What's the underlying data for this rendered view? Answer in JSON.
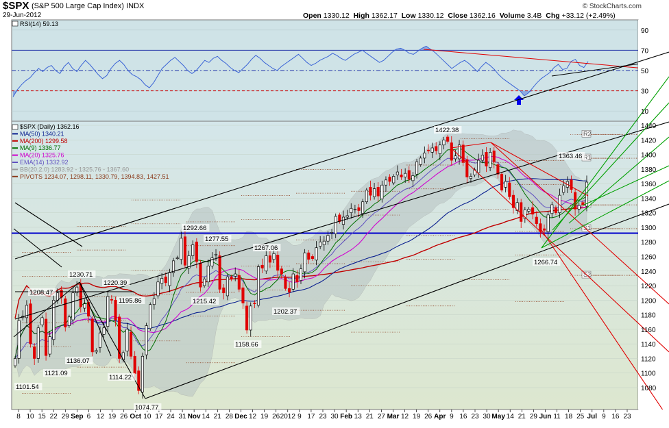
{
  "header": {
    "symbol": "$SPX",
    "name": "(S&P 500 Large Cap Index)",
    "exchange": "INDX",
    "date": "29-Jun-2012",
    "brand": "© StockCharts.com",
    "open_label": "Open",
    "open": "1330.12",
    "high_label": "High",
    "high": "1362.17",
    "low_label": "Low",
    "low": "1330.12",
    "close_label": "Close",
    "close": "1362.16",
    "volume_label": "Volume",
    "volume": "3.4B",
    "chg_label": "Chg",
    "chg": "+33.12 (+2.49%)"
  },
  "colors": {
    "panel_bg": "#cfe3e7",
    "price_bg_top": "#d4e6ea",
    "price_bg_bottom": "#dde7cf",
    "rsi_line": "#3a63d6",
    "up_candle": "#000000",
    "down_candle": "#e00000",
    "ma50": "#0a1f8f",
    "ma200": "#c00000",
    "ma9": "#007000",
    "ma20": "#d000d0",
    "ema14": "#6050c0",
    "bb": "#9a9a9a",
    "pivots": "#8b3a1a",
    "channel_black": "#000000",
    "channel_red": "#e00000",
    "channel_green": "#00a000",
    "support_blue": "#0000cc"
  },
  "chart_data": [
    {
      "type": "line",
      "title": "RSI(14) 59.13",
      "legend": "RSI(14) 59.13",
      "ylim": [
        0,
        100
      ],
      "y_ticks": [
        "90",
        "70",
        "50",
        "30",
        "10"
      ],
      "reference_lines": [
        70,
        50,
        30
      ],
      "series": [
        {
          "name": "RSI(14)",
          "values": [
            24,
            31,
            36,
            40,
            43,
            48,
            52,
            49,
            53,
            55,
            50,
            47,
            54,
            58,
            52,
            49,
            55,
            60,
            56,
            51,
            46,
            42,
            45,
            52,
            57,
            60,
            56,
            50,
            46,
            44,
            41,
            36,
            33,
            38,
            45,
            52,
            56,
            60,
            63,
            59,
            55,
            50,
            47,
            50,
            55,
            60,
            58,
            62,
            64,
            60,
            57,
            53,
            50,
            48,
            52,
            56,
            61,
            65,
            62,
            58,
            55,
            52,
            50,
            54,
            57,
            60,
            63,
            66,
            62,
            58,
            55,
            57,
            60,
            62,
            64,
            67,
            65,
            62,
            60,
            63,
            66,
            68,
            70,
            67,
            64,
            61,
            58,
            60,
            64,
            68,
            71,
            72,
            70,
            67,
            66,
            69,
            72,
            74,
            71,
            68,
            64,
            60,
            56,
            52,
            55,
            58,
            60,
            57,
            53,
            49,
            54,
            58,
            55,
            51,
            46,
            42,
            39,
            36,
            33,
            30,
            25,
            28,
            33,
            38,
            42,
            45,
            48,
            53,
            56,
            51,
            52,
            59,
            61,
            55,
            53,
            59
          ]
        }
      ]
    },
    {
      "type": "line",
      "title": "$SPX (Daily) 1362.16",
      "ylim": [
        1060,
        1450
      ],
      "y_ticks": [
        "1440",
        "1420",
        "1400",
        "1380",
        "1360",
        "1340",
        "1320",
        "1300",
        "1280",
        "1260",
        "1240",
        "1220",
        "1200",
        "1180",
        "1160",
        "1140",
        "1120",
        "1100",
        "1080"
      ],
      "x_tick_labels": [
        "8",
        "10",
        "15",
        "22",
        "29",
        "Sep",
        "6",
        "12",
        "19",
        "26",
        "Oct",
        "10",
        "17",
        "24",
        "31",
        "Nov",
        "14",
        "21",
        "28",
        "Dec",
        "12",
        "19",
        "26",
        "2012",
        "9",
        "17",
        "23",
        "30",
        "Feb",
        "13",
        "21",
        "27",
        "Mar",
        "12",
        "19",
        "26",
        "Apr",
        "9",
        "16",
        "23",
        "30",
        "May",
        "14",
        "21",
        "29",
        "Jun",
        "11",
        "18",
        "25",
        "Jul",
        "9",
        "16",
        "23"
      ],
      "legend": [
        "$SPX (Daily) 1362.16",
        "MA(50) 1340.21",
        "MA(200) 1299.58",
        "MA(9) 1336.77",
        "MA(20) 1325.76",
        "EMA(14) 1332.92",
        "BB(20,2.0) 1283.92 - 1325.76 - 1367.60",
        "PIVOTS 1234.07, 1298.11, 1330.79, 1394.83, 1427.51"
      ],
      "pivot_labels": [
        "R2",
        "R1",
        "P",
        "S1",
        "S2"
      ],
      "pivot_values": [
        1427.51,
        1394.83,
        1330.79,
        1298.11,
        1234.07
      ],
      "annotations": [
        {
          "text": "1208.47",
          "x": "Aug 15",
          "y": 1208.47
        },
        {
          "text": "1230.71",
          "x": "Aug 31",
          "y": 1230.71
        },
        {
          "text": "1220.39",
          "x": "Sep 16",
          "y": 1220.39
        },
        {
          "text": "1195.86",
          "x": "Sep 20",
          "y": 1195.86
        },
        {
          "text": "1121.09",
          "x": "Aug 22",
          "y": 1121.09
        },
        {
          "text": "1101.54",
          "x": "Aug 8",
          "y": 1101.54
        },
        {
          "text": "1136.07",
          "x": "Sep 12",
          "y": 1136.07
        },
        {
          "text": "1114.22",
          "x": "Sep 26",
          "y": 1114.22
        },
        {
          "text": "1074.77",
          "x": "Oct 4",
          "y": 1074.77
        },
        {
          "text": "1292.66",
          "x": "Oct 27",
          "y": 1292.66
        },
        {
          "text": "1215.42",
          "x": "Nov 1",
          "y": 1215.42
        },
        {
          "text": "1277.55",
          "x": "Nov 8",
          "y": 1277.55
        },
        {
          "text": "1158.66",
          "x": "Nov 25",
          "y": 1158.66
        },
        {
          "text": "1267.06",
          "x": "Dec 7",
          "y": 1267.06
        },
        {
          "text": "1202.37",
          "x": "Dec 19",
          "y": 1202.37
        },
        {
          "text": "1422.38",
          "x": "Apr 2",
          "y": 1422.38
        },
        {
          "text": "1363.46",
          "x": "Jun 19",
          "y": 1363.46
        },
        {
          "text": "1266.74",
          "x": "Jun 4",
          "y": 1266.74
        }
      ],
      "series": [
        {
          "name": "$SPX (Daily)",
          "close": [
            1120,
            1172,
            1178,
            1193,
            1140,
            1120,
            1162,
            1176,
            1124,
            1150,
            1200,
            1210,
            1204,
            1163,
            1177,
            1210,
            1218,
            1191,
            1195,
            1178,
            1129,
            1131,
            1155,
            1162,
            1205,
            1200,
            1173,
            1120,
            1128,
            1160,
            1123,
            1099,
            1076,
            1123,
            1165,
            1194,
            1202,
            1225,
            1230,
            1224,
            1238,
            1254,
            1258,
            1285,
            1248,
            1261,
            1276,
            1253,
            1218,
            1229,
            1247,
            1258,
            1263,
            1215,
            1210,
            1232,
            1229,
            1236,
            1215,
            1196,
            1159,
            1192,
            1195,
            1246,
            1244,
            1261,
            1252,
            1264,
            1241,
            1236,
            1216,
            1211,
            1236,
            1225,
            1243,
            1265,
            1256,
            1257,
            1272,
            1280,
            1281,
            1289,
            1293,
            1315,
            1308,
            1314,
            1316,
            1326,
            1325,
            1323,
            1335,
            1351,
            1344,
            1353,
            1343,
            1358,
            1365,
            1363,
            1370,
            1376,
            1369,
            1374,
            1366,
            1371,
            1390,
            1395,
            1402,
            1405,
            1409,
            1405,
            1413,
            1420,
            1418,
            1392,
            1398,
            1413,
            1389,
            1369,
            1370,
            1379,
            1392,
            1399,
            1384,
            1403,
            1390,
            1373,
            1351,
            1363,
            1342,
            1327,
            1334,
            1308,
            1324,
            1325,
            1318,
            1305,
            1294,
            1296,
            1317,
            1331,
            1320,
            1344,
            1357,
            1363,
            1352,
            1325,
            1330,
            1331,
            1362
          ]
        }
      ]
    }
  ]
}
